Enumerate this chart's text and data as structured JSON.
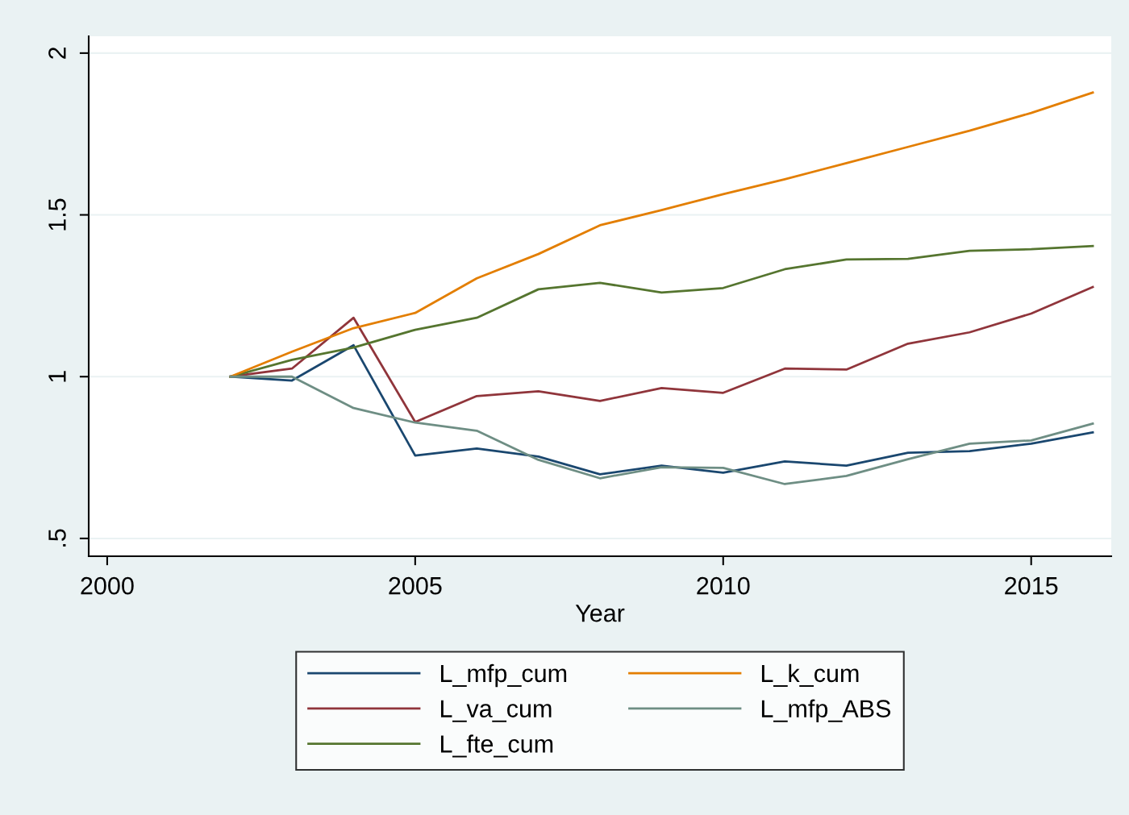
{
  "chart_data": {
    "type": "line",
    "xlabel": "Year",
    "x": [
      2002,
      2003,
      2004,
      2005,
      2006,
      2007,
      2008,
      2009,
      2010,
      2011,
      2012,
      2013,
      2014,
      2015,
      2016
    ],
    "series": [
      {
        "name": "L_mfp_cum",
        "color": "#1a476f",
        "values": [
          1.0,
          0.988,
          1.097,
          0.756,
          0.778,
          0.753,
          0.698,
          0.725,
          0.703,
          0.738,
          0.725,
          0.765,
          0.77,
          0.793,
          0.828
        ]
      },
      {
        "name": "L_va_cum",
        "color": "#90353b",
        "values": [
          1.0,
          1.025,
          1.182,
          0.86,
          0.94,
          0.955,
          0.925,
          0.965,
          0.95,
          1.025,
          1.022,
          1.102,
          1.137,
          1.195,
          1.277
        ]
      },
      {
        "name": "L_fte_cum",
        "color": "#55752f",
        "values": [
          1.0,
          1.052,
          1.09,
          1.145,
          1.182,
          1.27,
          1.29,
          1.26,
          1.274,
          1.332,
          1.362,
          1.364,
          1.389,
          1.394,
          1.404
        ]
      },
      {
        "name": "L_k_cum",
        "color": "#e37e00",
        "values": [
          1.0,
          1.077,
          1.15,
          1.197,
          1.304,
          1.379,
          1.468,
          1.515,
          1.564,
          1.61,
          1.66,
          1.71,
          1.76,
          1.815,
          1.878
        ]
      },
      {
        "name": "L_mfp_ABS",
        "color": "#6e8e84",
        "values": [
          1.0,
          1.0,
          0.903,
          0.858,
          0.833,
          0.743,
          0.686,
          0.72,
          0.718,
          0.668,
          0.693,
          0.745,
          0.793,
          0.803,
          0.855
        ]
      }
    ],
    "xlim": [
      1999.7,
      2016.3
    ],
    "xticks": [
      2000,
      2005,
      2010,
      2015
    ],
    "ylim": [
      0.445,
      2.052
    ],
    "yticks": [
      {
        "value": 0.5,
        "label": ".5"
      },
      1,
      1.5,
      2
    ],
    "grid": "y",
    "legend": "bottom",
    "marker": "none",
    "line_style": "solid"
  }
}
